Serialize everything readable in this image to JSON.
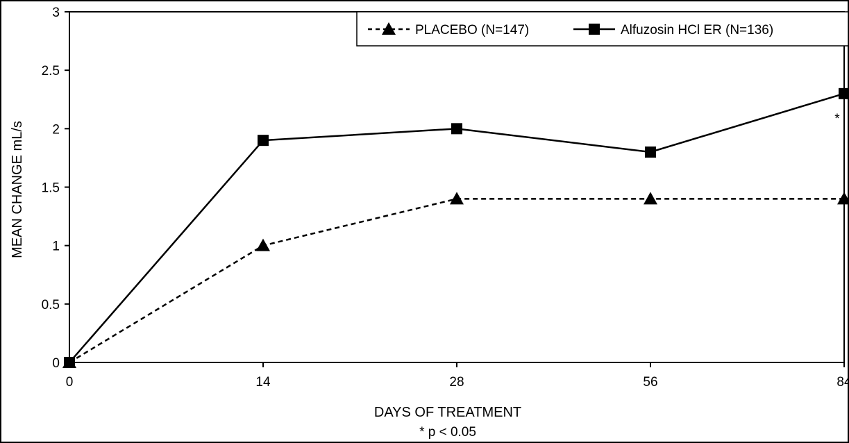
{
  "chart_data": {
    "type": "line",
    "title": "",
    "xlabel": "DAYS OF TREATMENT",
    "ylabel": "MEAN CHANGE mL/s",
    "categories": [
      "0",
      "14",
      "28",
      "56",
      "84"
    ],
    "ylim": [
      0,
      3
    ],
    "yticks": [
      "0",
      "0.5",
      "1",
      "1.5",
      "2",
      "2.5",
      "3"
    ],
    "grid": false,
    "legend_position": "top-right",
    "series": [
      {
        "name": "PLACEBO (N=147)",
        "values": [
          0,
          1.0,
          1.4,
          1.4,
          1.4
        ],
        "style": "dashed",
        "marker": "triangle",
        "color": "#000000"
      },
      {
        "name": "Alfuzosin HCl ER (N=136)",
        "values": [
          0,
          1.9,
          2.0,
          1.8,
          2.3
        ],
        "style": "solid",
        "marker": "square",
        "color": "#000000"
      }
    ],
    "annotations": [
      {
        "text": "*",
        "category": "84",
        "series": "Alfuzosin HCl ER (N=136)"
      }
    ],
    "footnote": "* p < 0.05"
  }
}
